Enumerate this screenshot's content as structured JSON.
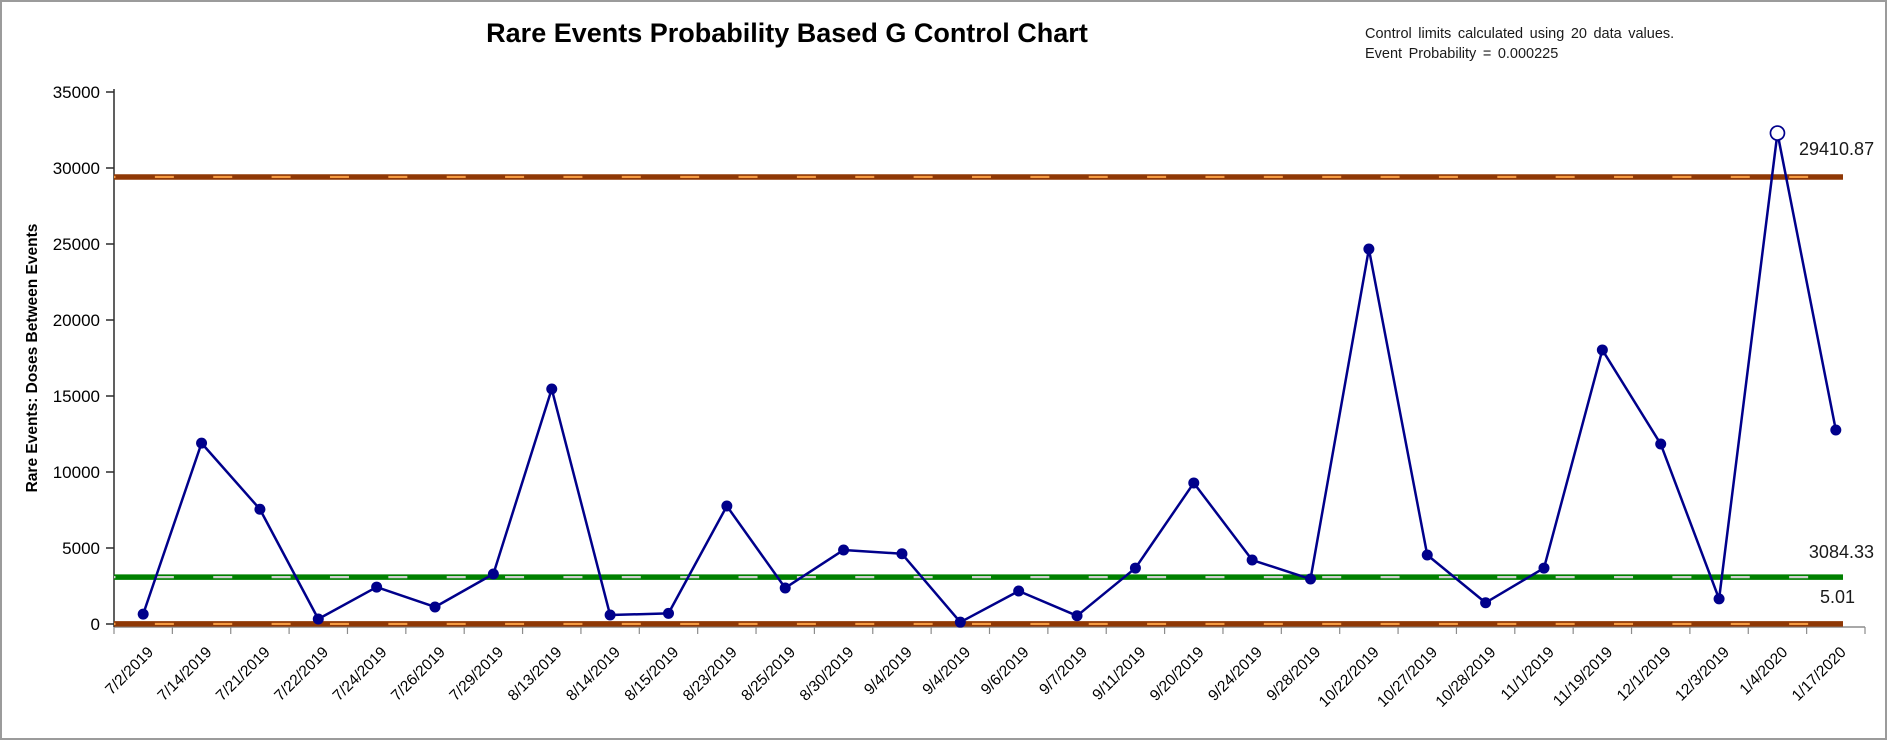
{
  "title": "Rare Events Probability Based G Control Chart",
  "annotation": {
    "line1": "Control limits calculated using 20 data values.",
    "line2": "Event Probability = 0.000225"
  },
  "chart_data": {
    "type": "line",
    "title": "Rare Events Probability Based G Control Chart",
    "xlabel": "",
    "ylabel": "Rare Events: Doses Between Events",
    "ylim": [
      0,
      35000
    ],
    "ytick_interval": 5000,
    "ytick_labels": [
      "0",
      "5000",
      "10000",
      "15000",
      "20000",
      "25000",
      "30000",
      "35000"
    ],
    "grid": false,
    "legend_position": "none",
    "categories": [
      "7/2/2019",
      "7/14/2019",
      "7/21/2019",
      "7/22/2019",
      "7/24/2019",
      "7/26/2019",
      "7/29/2019",
      "8/13/2019",
      "8/14/2019",
      "8/15/2019",
      "8/23/2019",
      "8/25/2019",
      "8/30/2019",
      "9/4/2019",
      "9/4/2019",
      "9/6/2019",
      "9/7/2019",
      "9/11/2019",
      "9/20/2019",
      "9/24/2019",
      "9/28/2019",
      "10/22/2019",
      "10/27/2019",
      "10/28/2019",
      "11/1/2019",
      "11/19/2019",
      "12/1/2019",
      "12/3/2019",
      "1/4/2020",
      "1/17/2020"
    ],
    "series": [
      {
        "name": "Rare Events: Doses Between Events",
        "values": [
          650,
          11900,
          7550,
          330,
          2430,
          1120,
          3290,
          15460,
          590,
          700,
          7760,
          2370,
          4870,
          4620,
          120,
          2170,
          540,
          3680,
          9280,
          4210,
          2960,
          24670,
          4540,
          1400,
          3680,
          18030,
          11840,
          1650,
          32300,
          12760
        ]
      }
    ],
    "out_of_control_index": 28,
    "control_limits": {
      "ucl": 29410.87,
      "cl": 3084.33,
      "lcl": 5.01
    },
    "limit_labels": {
      "ucl": "29410.87",
      "cl": "3084.33",
      "lcl": "5.01"
    },
    "colors": {
      "series": "#00008B",
      "center_line": "#008000",
      "center_dash": "#CFCFCF",
      "limit_line": "#8F3805",
      "limit_dash": "#F59B42",
      "axis": "#8c8c8c",
      "axis_y": "#2b2b2b",
      "text": "#000000"
    }
  }
}
